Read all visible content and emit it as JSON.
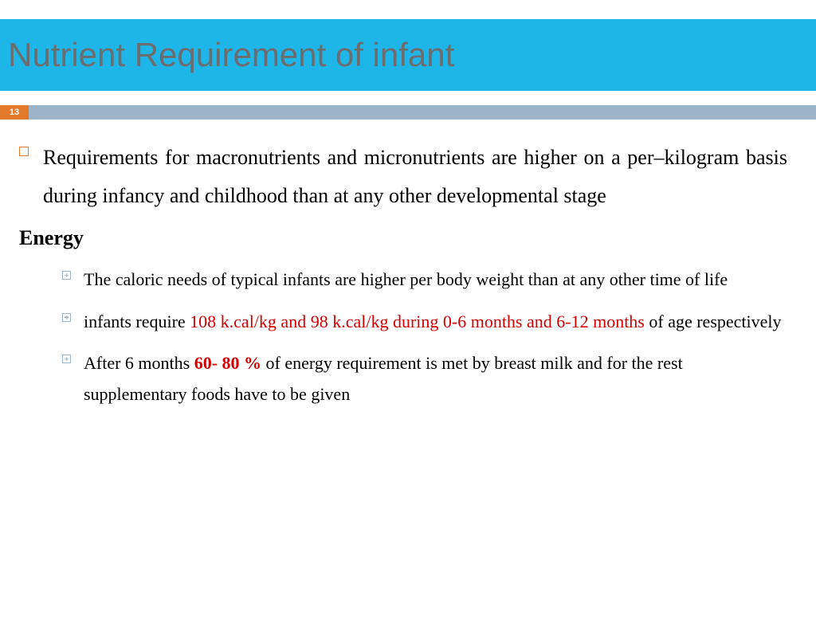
{
  "slide": {
    "title": "Nutrient Requirement of infant",
    "page_number": "13",
    "colors": {
      "title_band": "#1eb5e8",
      "title_text": "#6d6d6d",
      "page_box": "#e2792b",
      "page_bar": "#9db3c7",
      "highlight": "#d40000"
    },
    "main_bullet": "Requirements for macronutrients and micronutrients are higher on a per–kilogram basis during infancy and childhood than at any other developmental stage",
    "section_heading": "Energy",
    "sub_bullets": {
      "b1": "The caloric needs of typical infants are higher per body weight than at any other time of life",
      "b2_pre": "infants require ",
      "b2_red": "108 k.cal/kg and 98 k.cal/kg during 0-6 months and 6-12 months",
      "b2_post": " of age respectively",
      "b3_pre": "After 6 months ",
      "b3_red": "60- 80 % ",
      "b3_post": "of energy requirement is met by breast milk and for the rest supplementary foods have to be given"
    }
  }
}
